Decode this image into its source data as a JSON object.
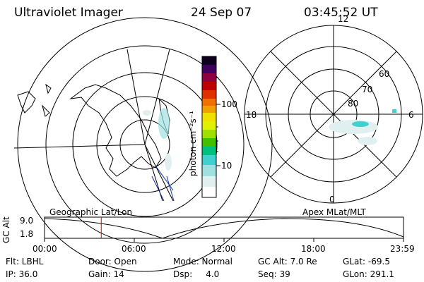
{
  "header": {
    "title": "Ultraviolet Imager",
    "date": "24 Sep 07",
    "time": "03:45:52 UT"
  },
  "colorbar": {
    "unit_label": "photon cm⁻²s⁻¹",
    "tick_100": "100",
    "tick_10": "10",
    "colors": [
      "#ffffff",
      "#e0f0f0",
      "#a0e0e0",
      "#40d0d0",
      "#00c080",
      "#40c000",
      "#a0e000",
      "#e0f000",
      "#f0e000",
      "#f0a000",
      "#f07000",
      "#e03000",
      "#c00000",
      "#900040",
      "#400060",
      "#100020"
    ]
  },
  "left_map": {
    "label": "Geographic Lat/Lon"
  },
  "right_map": {
    "label": "Apex MLat/MLT",
    "mlt_labels": {
      "top": "12",
      "left": "18",
      "right": "6",
      "bottom": "0"
    },
    "lat_labels": [
      "60",
      "70",
      "80"
    ]
  },
  "timeline": {
    "y_axis_label": "GC Alt",
    "y_max": "9.0",
    "y_min": "1.8",
    "x_ticks": [
      "00:00",
      "06:00",
      "12:00",
      "18:00",
      "23:59"
    ],
    "current_time_fraction": 0.158
  },
  "status": {
    "row1": [
      {
        "label": "Flt: LBHL"
      },
      {
        "label": "Door: Open"
      },
      {
        "label": "Mode: Normal"
      },
      {
        "label": "GC Alt: 7.0 Re"
      },
      {
        "label": "GLat: -69.5"
      }
    ],
    "row2": [
      {
        "label": "IP: 36.0"
      },
      {
        "label": "Gain: 14"
      },
      {
        "label": "Dsp:     4.0"
      },
      {
        "label": "Seq: 39"
      },
      {
        "label": "GLon: 291.1"
      }
    ]
  }
}
